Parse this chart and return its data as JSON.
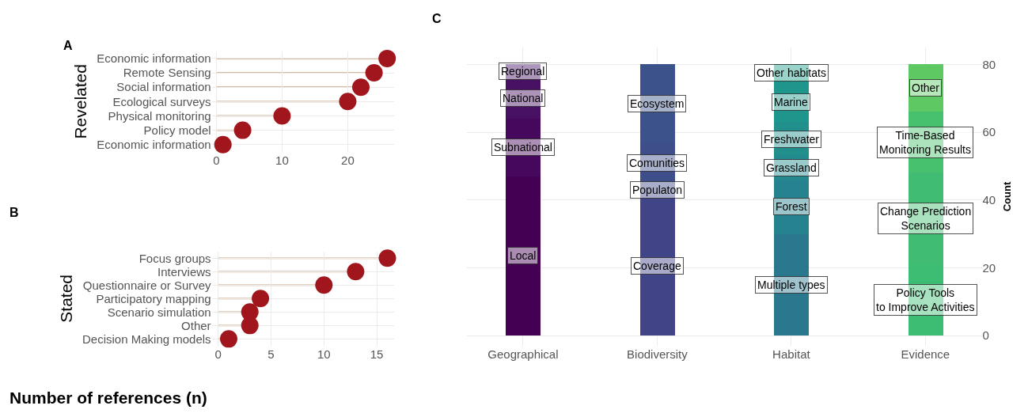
{
  "chart_data": [
    {
      "type": "lollipop",
      "orientation": "horizontal",
      "title": "A",
      "ylabel": "Revelated",
      "categories": [
        "Economic information",
        "Remote Sensing",
        "Social information",
        "Ecological surveys",
        "Physical monitoring",
        "Policy model",
        "Economic information"
      ],
      "series": [
        {
          "color": "#a0161c",
          "values": [
            26,
            24,
            22,
            20,
            10,
            4,
            1
          ]
        }
      ],
      "xlim": [
        -0.7,
        27
      ],
      "xticks": [
        0,
        10,
        20
      ],
      "grid": true,
      "marker": "circle"
    },
    {
      "type": "lollipop",
      "orientation": "horizontal",
      "title": "B",
      "ylabel": "Stated",
      "xlabel": "Number of references (n)",
      "categories": [
        "Focus groups",
        "Interviews",
        "Questionnaire or Survey",
        "Participatory mapping",
        "Scenario simulation",
        "Other",
        "Decision Making models"
      ],
      "series": [
        {
          "color": "#a0161c",
          "values": [
            16,
            13,
            10,
            4,
            3,
            3,
            1
          ]
        }
      ],
      "xlim": [
        -0.6,
        16.6
      ],
      "xticks": [
        0,
        5,
        10,
        15
      ],
      "grid": true,
      "marker": "circle"
    },
    {
      "type": "bar",
      "title": "C",
      "ylabel": "Count",
      "stacked": true,
      "categories": [
        "Geographical",
        "Biodiversity",
        "Habitat",
        "Evidence"
      ],
      "series": [
        {
          "values": [
            47,
            41,
            30,
            21
          ],
          "colors": [
            "#440154",
            "#414487",
            "#2a788e",
            "#3dbc74"
          ],
          "value_labels": [
            "Local",
            "Coverage",
            "Multiple types",
            "Policy Tools\nto Improve Activities"
          ]
        },
        {
          "values": [
            17,
            4,
            16,
            27
          ],
          "colors": [
            "#46085c",
            "#3f4a8a",
            "#26828e",
            "#40bd72"
          ],
          "value_labels": [
            "Subnational",
            "Populaton",
            "Forest",
            "Change Prediction\nScenarios"
          ]
        },
        {
          "values": [
            12,
            12,
            7,
            18
          ],
          "colors": [
            "#471063",
            "#3d4e8a",
            "#23898e",
            "#47c16e"
          ],
          "value_labels": [
            "National",
            "Comunities",
            "Grassland",
            "Time-Based\nMonitoring Results"
          ]
        },
        {
          "values": [
            4,
            23,
            10,
            14
          ],
          "colors": [
            "#48186a",
            "#3b528b",
            "#21908d",
            "#5ec962"
          ],
          "value_labels": [
            "Regional",
            "Ecosystem",
            "Freshwater",
            "Other"
          ]
        },
        {
          "values": [
            null,
            null,
            12,
            null
          ],
          "colors": [
            null,
            null,
            "#1f968b",
            null
          ],
          "value_labels": [
            null,
            null,
            "Marine",
            null
          ]
        },
        {
          "values": [
            null,
            null,
            5,
            null
          ],
          "colors": [
            null,
            null,
            "#1f9e89",
            null
          ],
          "value_labels": [
            null,
            null,
            "Other habitats",
            null
          ]
        }
      ],
      "ylim": [
        -3,
        85
      ],
      "yticks": [
        0,
        20,
        40,
        60,
        80
      ],
      "grid": true
    }
  ]
}
